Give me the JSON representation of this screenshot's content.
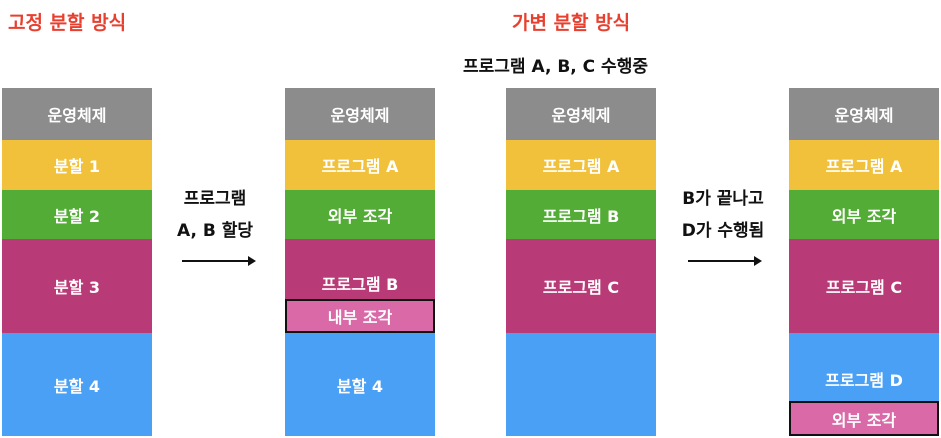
{
  "titles": {
    "fixed": "고정 분할 방식",
    "variable": "가변 분할 방식",
    "running": "프로그램 A, B, C 수행중"
  },
  "columns": {
    "fixed": {
      "os": "운영체제",
      "p1": "분할 1",
      "p2": "분할 2",
      "p3": "분할 3",
      "p4": "분할 4"
    },
    "fixed_alloc": {
      "os": "운영체제",
      "a": "프로그램 A",
      "ext": "외부 조각",
      "b": "프로그램 B",
      "int": "내부 조각",
      "p4": "분할 4"
    },
    "var_running": {
      "os": "운영체제",
      "a": "프로그램 A",
      "b": "프로그램 B",
      "c": "프로그램 C"
    },
    "var_after": {
      "os": "운영체제",
      "a": "프로그램 A",
      "ext1": "외부 조각",
      "c": "프로그램 C",
      "d": "프로그램 D",
      "ext2": "외부 조각"
    }
  },
  "arrows": {
    "alloc": {
      "line1": "프로그램",
      "line2": "A, B 할당"
    },
    "finish": {
      "line1": "B가 끝나고",
      "line2": "D가 수행됨"
    }
  }
}
